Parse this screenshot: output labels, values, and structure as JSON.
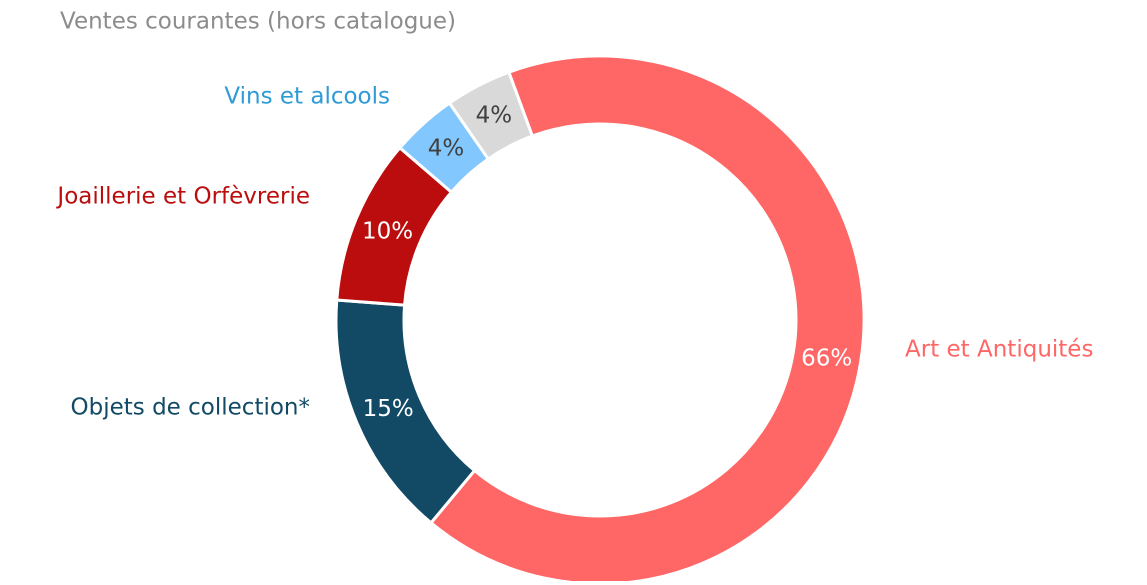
{
  "chart_data": {
    "type": "pie",
    "donut": true,
    "categories": [
      "Art et Antiquités",
      "Objets de collection*",
      "Joaillerie et Orfèvrerie",
      "Vins et alcools",
      "Ventes courantes (hors catalogue)"
    ],
    "values": [
      66,
      15,
      10,
      4,
      4
    ],
    "value_labels": [
      "66%",
      "15%",
      "10%",
      "4%",
      "4%"
    ],
    "colors": [
      "#ff6666",
      "#124a66",
      "#bb0d0d",
      "#82c8ff",
      "#d9d9d9"
    ],
    "label_colors": [
      "#ff6666",
      "#124a66",
      "#bb0d0d",
      "#2e9bd6",
      "#8c8c8c"
    ],
    "value_label_colors": [
      "#ffffff",
      "#ffffff",
      "#ffffff",
      "#404040",
      "#404040"
    ]
  }
}
